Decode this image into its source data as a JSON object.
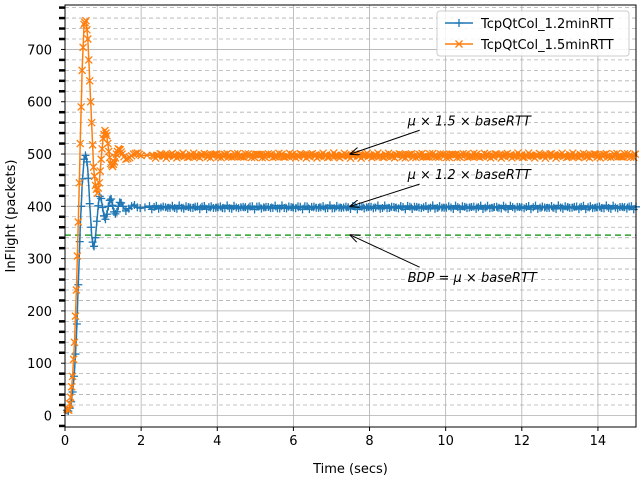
{
  "chart_data": {
    "type": "line",
    "xlabel": "Time (secs)",
    "ylabel": "InFlight (packets)",
    "xlim": [
      0,
      15
    ],
    "ylim": [
      -22,
      785
    ],
    "x_ticks": [
      0,
      2,
      4,
      6,
      8,
      10,
      12,
      14
    ],
    "y_ticks": [
      0,
      100,
      200,
      300,
      400,
      500,
      600,
      700
    ],
    "y_minor_step": 20,
    "grid": true,
    "legend_position": "top-right",
    "colors": {
      "series1": "#1f77b4",
      "series2": "#ff7f0e",
      "bdp": "#2ca02c"
    },
    "series": [
      {
        "name": "TcpQtCol_1.2minRTT",
        "marker": "+",
        "steady": 398,
        "ripple": 4,
        "keypoints": [
          [
            0.05,
            10
          ],
          [
            0.1,
            8
          ],
          [
            0.15,
            20
          ],
          [
            0.2,
            45
          ],
          [
            0.25,
            85
          ],
          [
            0.3,
            150
          ],
          [
            0.35,
            250
          ],
          [
            0.4,
            360
          ],
          [
            0.45,
            440
          ],
          [
            0.5,
            490
          ],
          [
            0.55,
            500
          ],
          [
            0.6,
            470
          ],
          [
            0.65,
            405
          ],
          [
            0.7,
            345
          ],
          [
            0.75,
            318
          ],
          [
            0.8,
            340
          ],
          [
            0.85,
            382
          ],
          [
            0.9,
            420
          ],
          [
            0.95,
            415
          ],
          [
            1.0,
            392
          ],
          [
            1.05,
            372
          ],
          [
            1.1,
            385
          ],
          [
            1.15,
            405
          ],
          [
            1.2,
            418
          ],
          [
            1.25,
            402
          ],
          [
            1.3,
            385
          ],
          [
            1.35,
            386
          ],
          [
            1.4,
            400
          ],
          [
            1.45,
            410
          ],
          [
            1.5,
            403
          ],
          [
            1.6,
            391
          ],
          [
            1.7,
            397
          ],
          [
            1.8,
            404
          ],
          [
            1.9,
            398
          ],
          [
            2.0,
            396
          ],
          [
            2.2,
            400
          ]
        ]
      },
      {
        "name": "TcpQtCol_1.5minRTT",
        "marker": "x",
        "steady": 497,
        "ripple": 5,
        "keypoints": [
          [
            0.05,
            12
          ],
          [
            0.1,
            10
          ],
          [
            0.15,
            35
          ],
          [
            0.2,
            75
          ],
          [
            0.25,
            140
          ],
          [
            0.3,
            240
          ],
          [
            0.35,
            370
          ],
          [
            0.4,
            520
          ],
          [
            0.45,
            660
          ],
          [
            0.5,
            748
          ],
          [
            0.55,
            755
          ],
          [
            0.6,
            720
          ],
          [
            0.65,
            640
          ],
          [
            0.7,
            560
          ],
          [
            0.75,
            475
          ],
          [
            0.8,
            440
          ],
          [
            0.85,
            425
          ],
          [
            0.9,
            445
          ],
          [
            0.95,
            490
          ],
          [
            1.0,
            530
          ],
          [
            1.05,
            545
          ],
          [
            1.1,
            535
          ],
          [
            1.15,
            505
          ],
          [
            1.2,
            482
          ],
          [
            1.25,
            476
          ],
          [
            1.3,
            485
          ],
          [
            1.35,
            500
          ],
          [
            1.4,
            510
          ],
          [
            1.45,
            508
          ],
          [
            1.5,
            500
          ],
          [
            1.6,
            490
          ],
          [
            1.7,
            493
          ],
          [
            1.8,
            500
          ],
          [
            1.9,
            502
          ],
          [
            2.0,
            497
          ],
          [
            2.3,
            498
          ]
        ]
      }
    ],
    "reference_line": {
      "label": "BDP",
      "y": 345,
      "style": "dashed"
    },
    "annotations": [
      {
        "text": "μ × 1.5 × baseRTT",
        "text_at": [
          9.0,
          555
        ],
        "point_to": [
          7.5,
          500
        ]
      },
      {
        "text": "μ × 1.2 × baseRTT",
        "text_at": [
          9.0,
          452
        ],
        "point_to": [
          7.5,
          400
        ]
      },
      {
        "text": "BDP = μ × baseRTT",
        "text_at": [
          9.0,
          255
        ],
        "point_to": [
          7.5,
          345
        ]
      }
    ]
  }
}
